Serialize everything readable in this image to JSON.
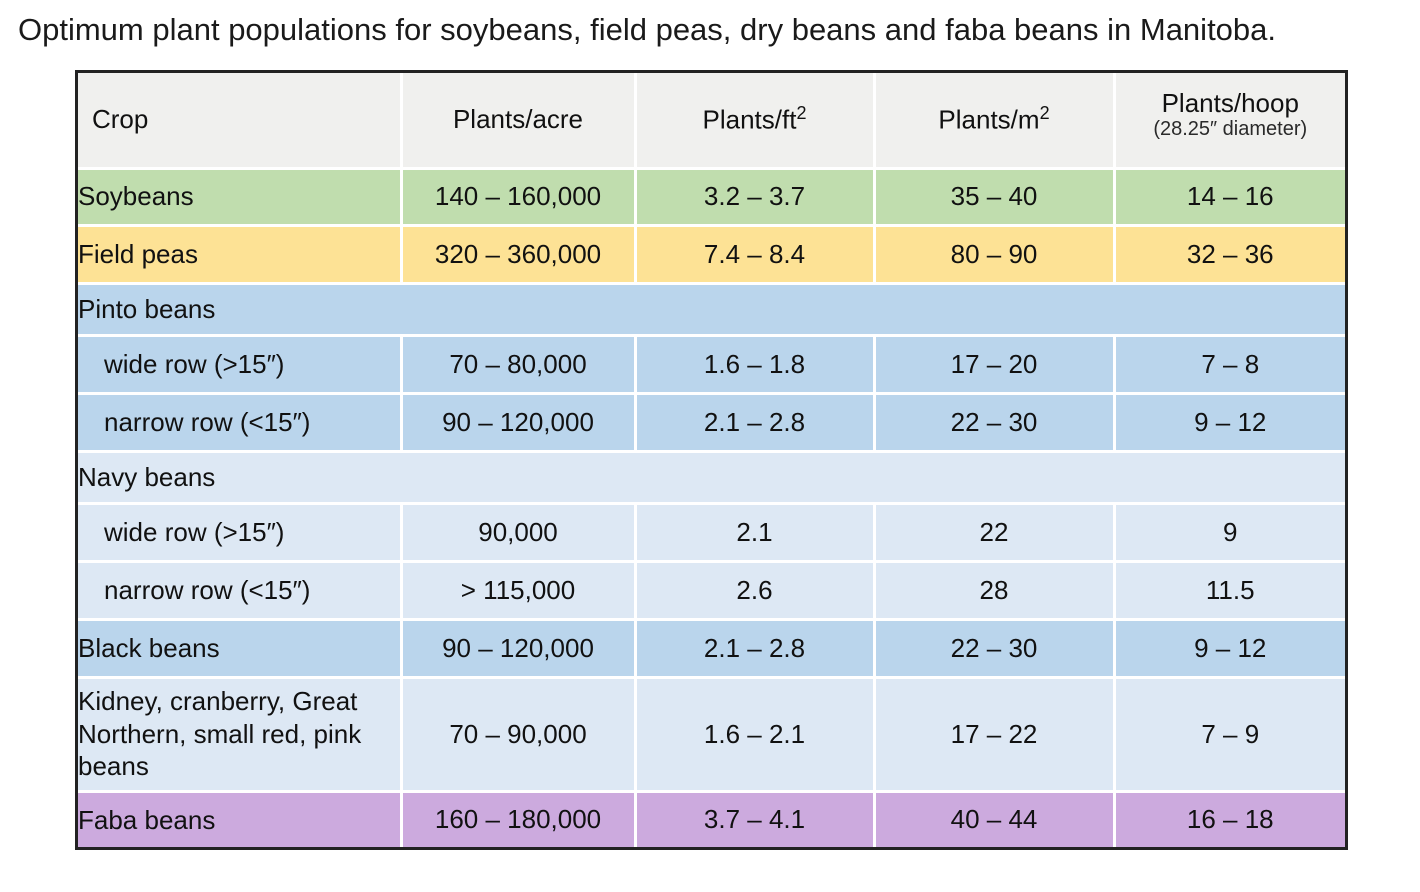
{
  "title": "Optimum plant populations for soybeans, field peas, dry beans and faba beans in Manitoba.",
  "table": {
    "columns": [
      {
        "label": "Crop",
        "sup": "",
        "sub": ""
      },
      {
        "label": "Plants/acre",
        "sup": "",
        "sub": ""
      },
      {
        "label": "Plants/ft",
        "sup": "2",
        "sub": ""
      },
      {
        "label": "Plants/m",
        "sup": "2",
        "sub": ""
      },
      {
        "label": "Plants/hoop",
        "sup": "",
        "sub": "(28.25″ diameter)"
      }
    ],
    "colors": {
      "header_bg": "#f0f0ee",
      "green": "#c0ddae",
      "yellow": "#fde295",
      "blue": "#bad5ec",
      "light_blue": "#dde8f4",
      "purple": "#ccaade",
      "outer_border": "#222222",
      "divider": "#ffffff",
      "text": "#111111"
    },
    "rows": [
      {
        "type": "data",
        "color": "green",
        "indent": false,
        "crop": "Soybeans",
        "values": [
          "140 – 160,000",
          "3.2 – 3.7",
          "35 – 40",
          "14 – 16"
        ]
      },
      {
        "type": "data",
        "color": "yellow",
        "indent": false,
        "crop": "Field peas",
        "values": [
          "320 – 360,000",
          "7.4 – 8.4",
          "80 – 90",
          "32 – 36"
        ]
      },
      {
        "type": "group",
        "color": "blue",
        "indent": false,
        "crop": "Pinto beans",
        "values": []
      },
      {
        "type": "data",
        "color": "blue",
        "indent": true,
        "crop": "wide row (>15″)",
        "values": [
          "70 – 80,000",
          "1.6 – 1.8",
          "17 – 20",
          "7 – 8"
        ]
      },
      {
        "type": "data",
        "color": "blue",
        "indent": true,
        "crop": "narrow row (<15″)",
        "values": [
          "90 – 120,000",
          "2.1 – 2.8",
          "22 – 30",
          "9 – 12"
        ]
      },
      {
        "type": "group",
        "color": "light_blue",
        "indent": false,
        "crop": "Navy beans",
        "values": []
      },
      {
        "type": "data",
        "color": "light_blue",
        "indent": true,
        "crop": "wide row (>15″)",
        "values": [
          "90,000",
          "2.1",
          "22",
          "9"
        ]
      },
      {
        "type": "data",
        "color": "light_blue",
        "indent": true,
        "crop": "narrow row (<15″)",
        "values": [
          "> 115,000",
          "2.6",
          "28",
          "11.5"
        ]
      },
      {
        "type": "data",
        "color": "blue",
        "indent": false,
        "crop": "Black beans",
        "values": [
          "90 – 120,000",
          "2.1 – 2.8",
          "22 – 30",
          "9 – 12"
        ]
      },
      {
        "type": "data",
        "color": "light_blue",
        "indent": false,
        "crop": "Kidney, cranberry, Great Northern, small red, pink beans",
        "values": [
          "70 – 90,000",
          "1.6 – 2.1",
          "17 – 22",
          "7 – 9"
        ]
      },
      {
        "type": "data",
        "color": "purple",
        "indent": false,
        "crop": "Faba beans",
        "values": [
          "160 – 180,000",
          "3.7 – 4.1",
          "40 – 44",
          "16 – 18"
        ]
      }
    ]
  },
  "chart_data": {
    "type": "table",
    "title": "Optimum plant populations for soybeans, field peas, dry beans and faba beans in Manitoba.",
    "columns": [
      "Crop",
      "Plants/acre",
      "Plants/ft²",
      "Plants/m²",
      "Plants/hoop (28.25″ diameter)"
    ],
    "rows": [
      [
        "Soybeans",
        "140 – 160,000",
        "3.2 – 3.7",
        "35 – 40",
        "14 – 16"
      ],
      [
        "Field peas",
        "320 – 360,000",
        "7.4 – 8.4",
        "80 – 90",
        "32 – 36"
      ],
      [
        "Pinto beans",
        "",
        "",
        "",
        ""
      ],
      [
        "wide row (>15″)",
        "70 – 80,000",
        "1.6 – 1.8",
        "17 – 20",
        "7 – 8"
      ],
      [
        "narrow row (<15″)",
        "90 – 120,000",
        "2.1 – 2.8",
        "22 – 30",
        "9 – 12"
      ],
      [
        "Navy beans",
        "",
        "",
        "",
        ""
      ],
      [
        "wide row (>15″)",
        "90,000",
        "2.1",
        "22",
        "9"
      ],
      [
        "narrow row (<15″)",
        "> 115,000",
        "2.6",
        "28",
        "11.5"
      ],
      [
        "Black beans",
        "90 – 120,000",
        "2.1 – 2.8",
        "22 – 30",
        "9 – 12"
      ],
      [
        "Kidney, cranberry, Great Northern, small red, pink beans",
        "70 – 90,000",
        "1.6 – 2.1",
        "17 – 22",
        "7 – 9"
      ],
      [
        "Faba beans",
        "160 – 180,000",
        "3.7 – 4.1",
        "40 – 44",
        "16 – 18"
      ]
    ]
  }
}
